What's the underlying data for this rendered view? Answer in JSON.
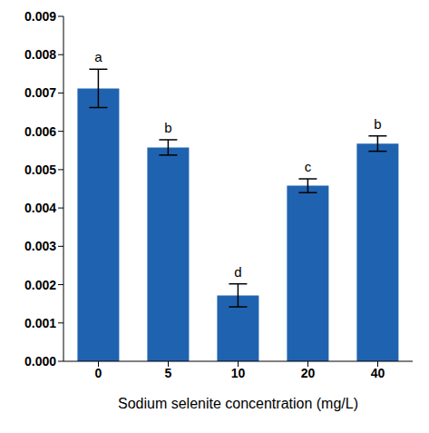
{
  "chart_data": {
    "type": "bar",
    "categories": [
      "0",
      "5",
      "10",
      "20",
      "40"
    ],
    "values": [
      0.00712,
      0.00558,
      0.00172,
      0.00458,
      0.00568
    ],
    "errors": [
      0.0005,
      0.0002,
      0.0003,
      0.00018,
      0.0002
    ],
    "letters": [
      "a",
      "b",
      "d",
      "c",
      "b"
    ],
    "color": "#1f63b0",
    "x_label": "Sodium selenite concentration (mg/L)",
    "ylim": [
      0,
      0.009
    ],
    "yticks": [
      {
        "value": 0,
        "label": "0.000"
      },
      {
        "value": 0.001,
        "label": "0.001"
      },
      {
        "value": 0.002,
        "label": "0.002"
      },
      {
        "value": 0.003,
        "label": "0.003"
      },
      {
        "value": 0.004,
        "label": "0.004"
      },
      {
        "value": 0.005,
        "label": "0.005"
      },
      {
        "value": 0.006,
        "label": "0.006"
      },
      {
        "value": 0.007,
        "label": "0.007"
      },
      {
        "value": 0.008,
        "label": "0.008"
      },
      {
        "value": 0.009,
        "label": "0.009"
      }
    ],
    "grid": false
  }
}
